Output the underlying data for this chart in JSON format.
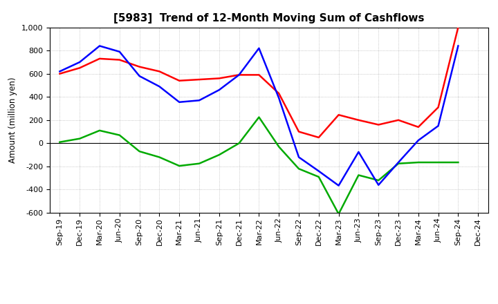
{
  "title": "[5983]  Trend of 12-Month Moving Sum of Cashflows",
  "ylabel": "Amount (million yen)",
  "xlabels": [
    "Sep-19",
    "Dec-19",
    "Mar-20",
    "Jun-20",
    "Sep-20",
    "Dec-20",
    "Mar-21",
    "Jun-21",
    "Sep-21",
    "Dec-21",
    "Mar-22",
    "Jun-22",
    "Sep-22",
    "Dec-22",
    "Mar-23",
    "Jun-23",
    "Sep-23",
    "Dec-23",
    "Mar-24",
    "Jun-24",
    "Sep-24",
    "Dec-24"
  ],
  "operating": [
    600,
    650,
    730,
    720,
    660,
    620,
    540,
    550,
    560,
    590,
    590,
    430,
    100,
    50,
    245,
    200,
    160,
    200,
    140,
    310,
    1000,
    null
  ],
  "investing": [
    10,
    40,
    110,
    70,
    -70,
    -120,
    -195,
    -175,
    -100,
    0,
    225,
    -30,
    -220,
    -290,
    -610,
    -275,
    -320,
    -175,
    -165,
    -165,
    -165,
    null
  ],
  "free": [
    620,
    700,
    840,
    790,
    580,
    490,
    355,
    370,
    460,
    590,
    820,
    390,
    -120,
    -240,
    -365,
    -75,
    -360,
    -165,
    25,
    150,
    840,
    null
  ],
  "ylim": [
    -600,
    1000
  ],
  "yticks": [
    -600,
    -400,
    -200,
    0,
    200,
    400,
    600,
    800,
    1000
  ],
  "colors": {
    "operating": "#FF0000",
    "investing": "#00AA00",
    "free": "#0000FF"
  },
  "background_color": "#FFFFFF",
  "grid_color": "#999999",
  "linewidth": 1.8,
  "title_fontsize": 11,
  "axis_fontsize": 8,
  "legend_fontsize": 8.5
}
